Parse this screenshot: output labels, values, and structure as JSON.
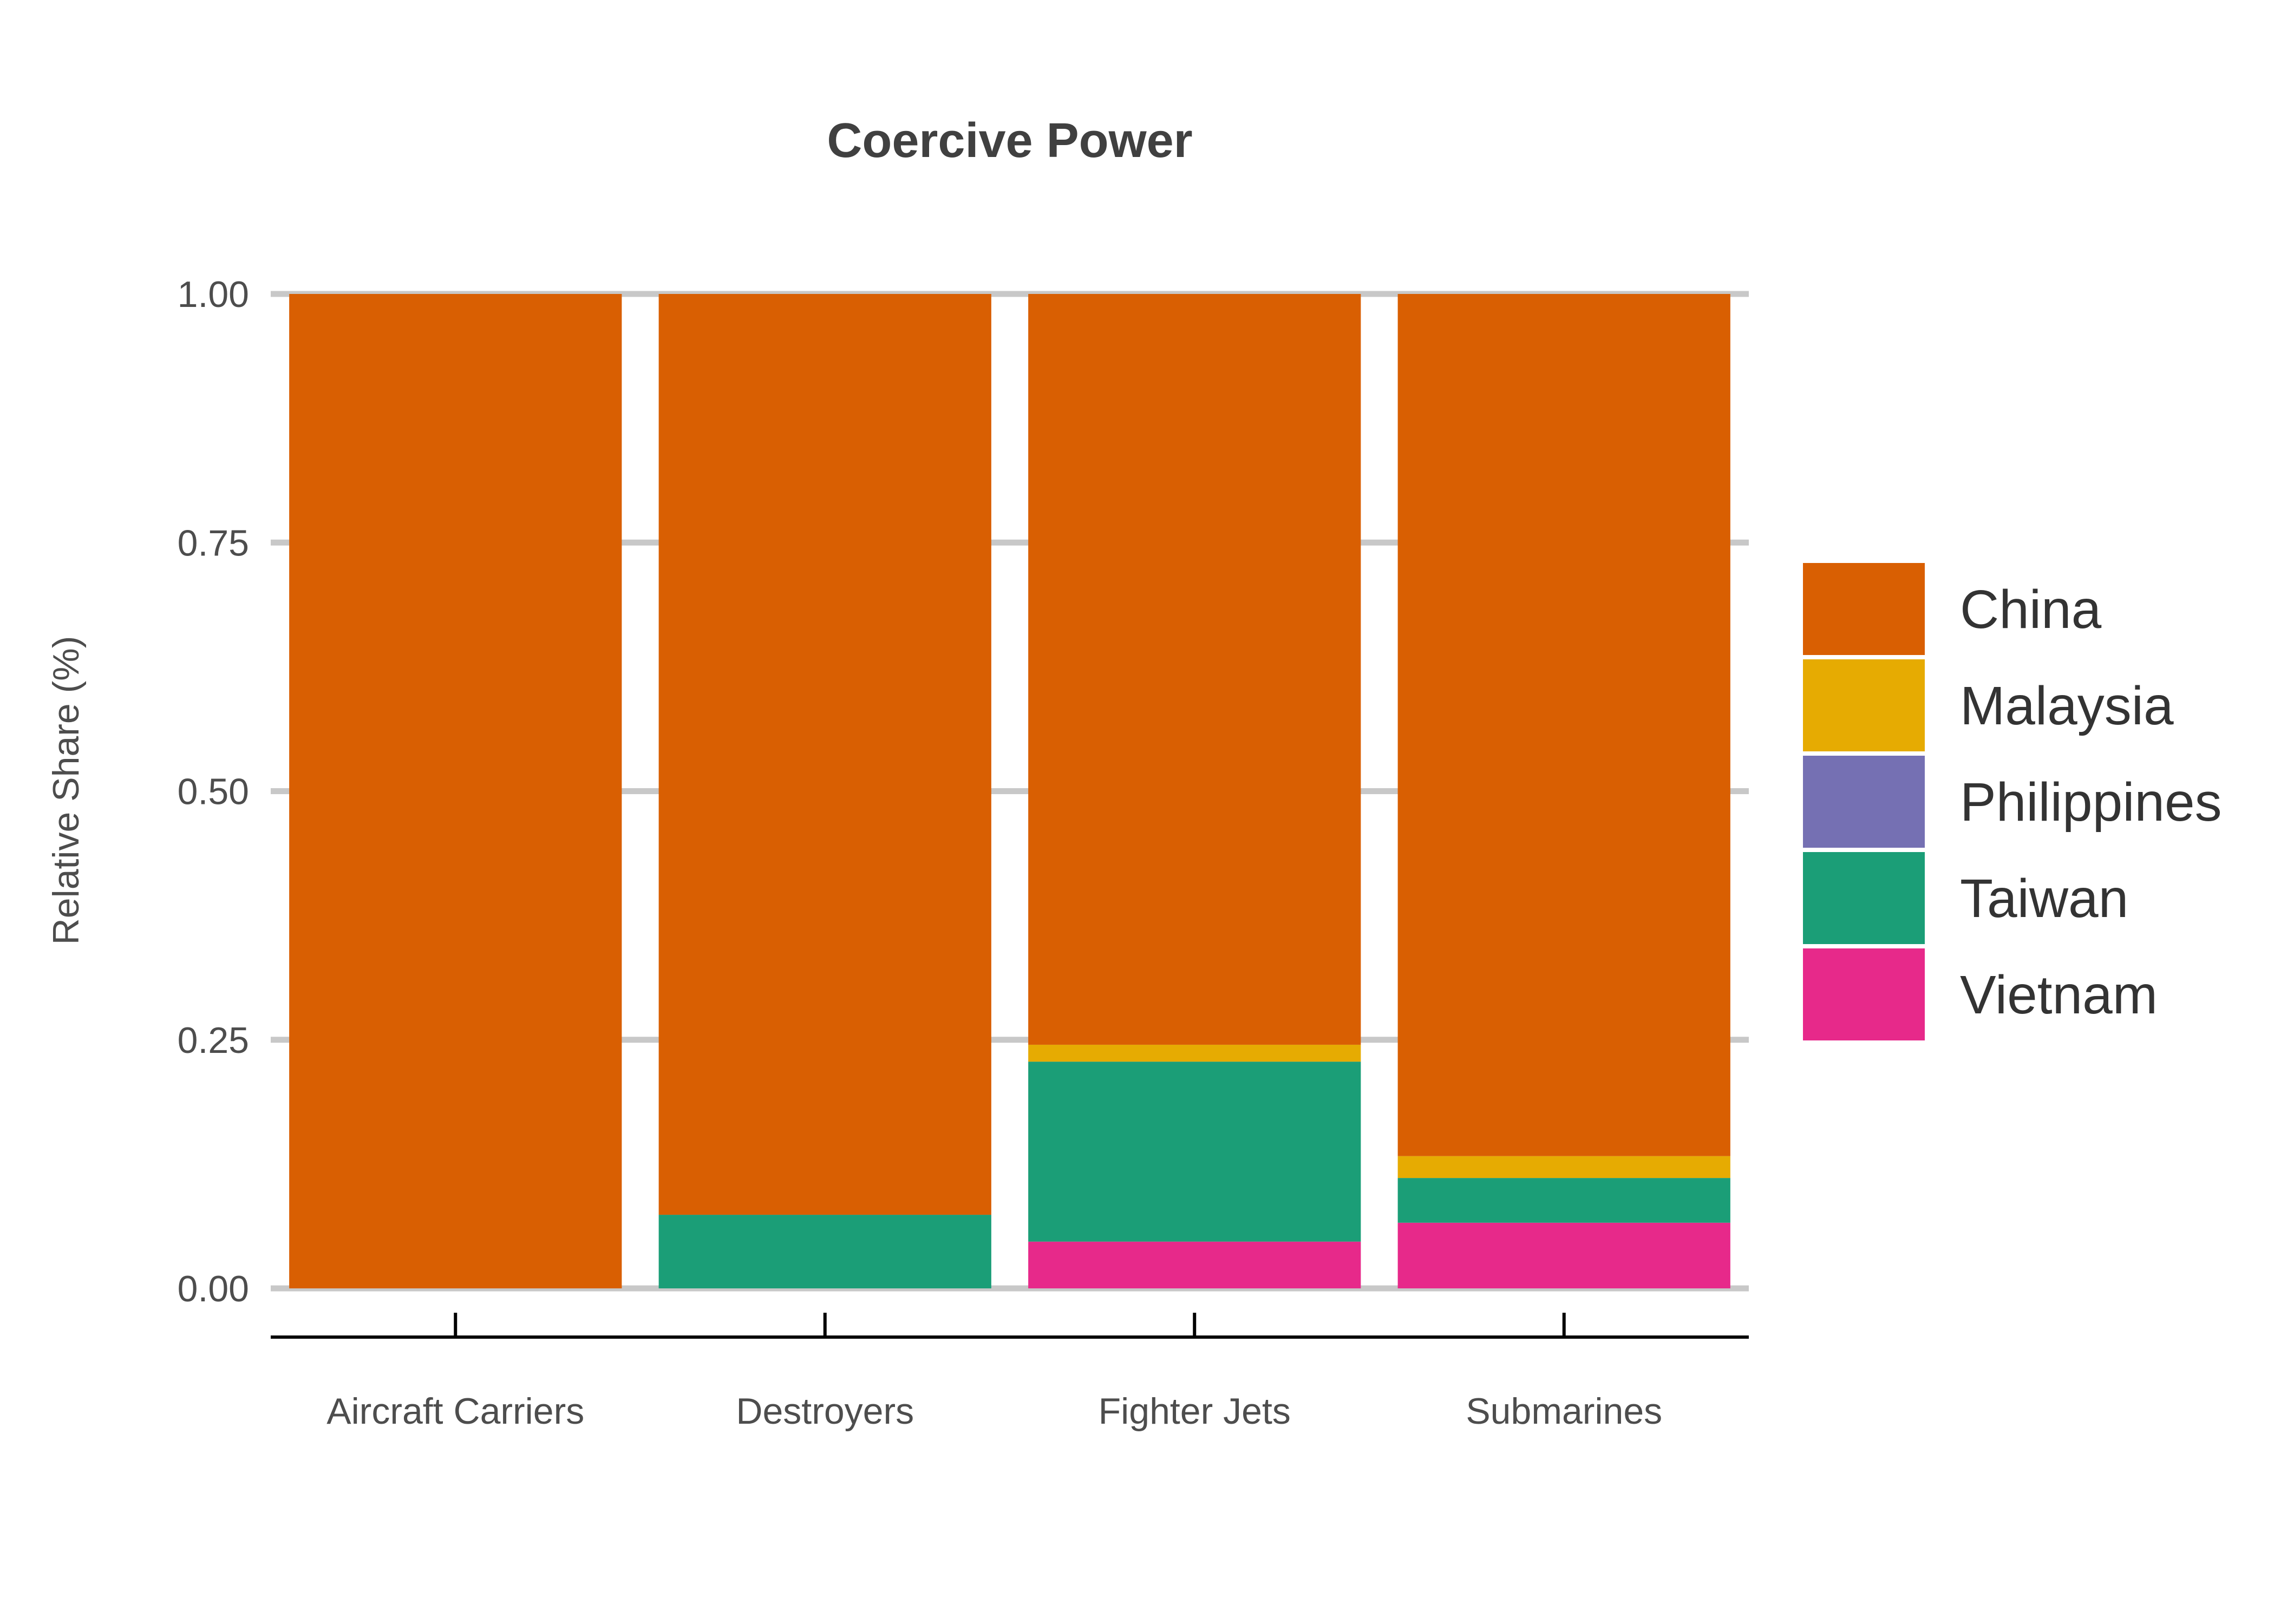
{
  "chart_data": {
    "type": "bar",
    "stacked": true,
    "title": "Coercive Power",
    "xlabel": "",
    "ylabel": "Relative Share (%)",
    "ylim": [
      0,
      1
    ],
    "yticks": [
      "0.00",
      "0.25",
      "0.50",
      "0.75",
      "1.00"
    ],
    "ytick_values": [
      0,
      0.25,
      0.5,
      0.75,
      1.0
    ],
    "grid": "horizontal",
    "legend_position": "right",
    "categories": [
      "Aircraft Carriers",
      "Destroyers",
      "Fighter Jets",
      "Submarines"
    ],
    "series": [
      {
        "name": "Vietnam",
        "color": "#e7298a",
        "values": [
          0,
          0,
          0.047,
          0.066
        ]
      },
      {
        "name": "Taiwan",
        "color": "#1b9e77",
        "values": [
          0,
          0.074,
          0.181,
          0.045
        ]
      },
      {
        "name": "Philippines",
        "color": "#7570b3",
        "values": [
          0,
          0,
          0,
          0
        ]
      },
      {
        "name": "Malaysia",
        "color": "#e6ab02",
        "values": [
          0,
          0,
          0.017,
          0.022
        ]
      },
      {
        "name": "China",
        "color": "#d95f02",
        "values": [
          1.0,
          0.926,
          0.755,
          0.867
        ]
      }
    ],
    "legend_order": [
      "China",
      "Malaysia",
      "Philippines",
      "Taiwan",
      "Vietnam"
    ]
  }
}
